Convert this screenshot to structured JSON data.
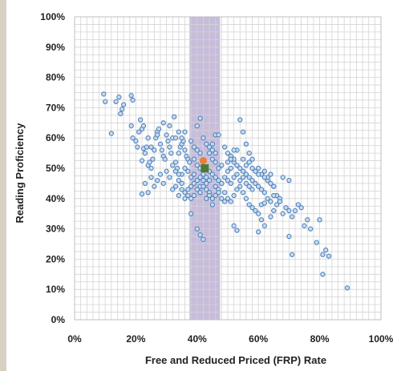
{
  "chart_data": {
    "type": "scatter",
    "title": "",
    "xlabel": "Free and Reduced Priced (FRP) Rate",
    "ylabel": "Reading Proficiency",
    "xlim": [
      0,
      100
    ],
    "ylim": [
      0,
      100
    ],
    "x_ticks": [
      0,
      20,
      40,
      60,
      80,
      100
    ],
    "y_ticks": [
      0,
      10,
      20,
      30,
      40,
      50,
      60,
      70,
      80,
      90,
      100
    ],
    "x_tick_labels": [
      "0%",
      "20%",
      "40%",
      "60%",
      "80%",
      "100%"
    ],
    "y_tick_labels": [
      "0%",
      "10%",
      "20%",
      "30%",
      "40%",
      "50%",
      "60%",
      "70%",
      "80%",
      "90%",
      "100%"
    ],
    "grid": true,
    "legend": "none",
    "colors": {
      "points_fill": "#c9dcef",
      "points_edge": "#4f81bd",
      "band": "#b4a7cf",
      "highlight_orange": "#ed7d31",
      "highlight_green": "#4f7a35",
      "grid": "#d4d4d4"
    },
    "band": {
      "x_start": 37.5,
      "x_end": 47.5
    },
    "highlights": [
      {
        "color": "orange",
        "x": 42,
        "y": 52.5
      },
      {
        "color": "green",
        "x": 42.5,
        "y": 50
      }
    ],
    "series": [
      {
        "points": [
          [
            9.5,
            74.5
          ],
          [
            10,
            72
          ],
          [
            12,
            61.5
          ],
          [
            13.5,
            72
          ],
          [
            14.5,
            73.5
          ],
          [
            15,
            68
          ],
          [
            15.5,
            69.5
          ],
          [
            16,
            71
          ],
          [
            18.5,
            74
          ],
          [
            19,
            72.5
          ],
          [
            18.5,
            64
          ],
          [
            19,
            60
          ],
          [
            20,
            59
          ],
          [
            20.5,
            57
          ],
          [
            21,
            62
          ],
          [
            21.5,
            66
          ],
          [
            22,
            63
          ],
          [
            22.5,
            64
          ],
          [
            22,
            52.5
          ],
          [
            22.5,
            56.5
          ],
          [
            23,
            55
          ],
          [
            23.5,
            57
          ],
          [
            24,
            51
          ],
          [
            24.5,
            52
          ],
          [
            25,
            50
          ],
          [
            25.5,
            53
          ],
          [
            26,
            56
          ],
          [
            26.5,
            60
          ],
          [
            27,
            62
          ],
          [
            27.5,
            63
          ],
          [
            28,
            58
          ],
          [
            28.5,
            56
          ],
          [
            29,
            54
          ],
          [
            29.5,
            53
          ],
          [
            30,
            61
          ],
          [
            30.5,
            59
          ],
          [
            31,
            57
          ],
          [
            31.5,
            55
          ],
          [
            32,
            60
          ],
          [
            32.5,
            67
          ],
          [
            33,
            52
          ],
          [
            33.5,
            50
          ],
          [
            34,
            55
          ],
          [
            34.5,
            57
          ],
          [
            35,
            58
          ],
          [
            35.5,
            59
          ],
          [
            36,
            56
          ],
          [
            36.5,
            54
          ],
          [
            37,
            53
          ],
          [
            37.5,
            52
          ],
          [
            22,
            41.5
          ],
          [
            23,
            45
          ],
          [
            24,
            42
          ],
          [
            25,
            47
          ],
          [
            26,
            44
          ],
          [
            27,
            46
          ],
          [
            28,
            48
          ],
          [
            29,
            45
          ],
          [
            30,
            49
          ],
          [
            31,
            47
          ],
          [
            32,
            43
          ],
          [
            33,
            44
          ],
          [
            34,
            46
          ],
          [
            35,
            48
          ],
          [
            36,
            50
          ],
          [
            37,
            49
          ],
          [
            38,
            47
          ],
          [
            39,
            48
          ],
          [
            40,
            46
          ],
          [
            41,
            44
          ],
          [
            38,
            59
          ],
          [
            39,
            57
          ],
          [
            40,
            56
          ],
          [
            41,
            55
          ],
          [
            39,
            53
          ],
          [
            40,
            51
          ],
          [
            41,
            50
          ],
          [
            42,
            48
          ],
          [
            43,
            47
          ],
          [
            44,
            46
          ],
          [
            40,
            64
          ],
          [
            41,
            66.5
          ],
          [
            44,
            55
          ],
          [
            45,
            58
          ],
          [
            46,
            61
          ],
          [
            47,
            61
          ],
          [
            45,
            53
          ],
          [
            46,
            52
          ],
          [
            47,
            50
          ],
          [
            48,
            51
          ],
          [
            38,
            35
          ],
          [
            40,
            30
          ],
          [
            41,
            28
          ],
          [
            42,
            26.5
          ],
          [
            43,
            40
          ],
          [
            44,
            42
          ],
          [
            45,
            38
          ],
          [
            46,
            44
          ],
          [
            47,
            43
          ],
          [
            48,
            45
          ],
          [
            49,
            47
          ],
          [
            50,
            49
          ],
          [
            51,
            50
          ],
          [
            52,
            52
          ],
          [
            53,
            51
          ],
          [
            54,
            50
          ],
          [
            55,
            49
          ],
          [
            56,
            48
          ],
          [
            57,
            47
          ],
          [
            58,
            46
          ],
          [
            49,
            57
          ],
          [
            50,
            55
          ],
          [
            51,
            54
          ],
          [
            52,
            53
          ],
          [
            53,
            56
          ],
          [
            54,
            66
          ],
          [
            55,
            62
          ],
          [
            56,
            58
          ],
          [
            57,
            55
          ],
          [
            58,
            53
          ],
          [
            49,
            42
          ],
          [
            50,
            40
          ],
          [
            51,
            39
          ],
          [
            52,
            41
          ],
          [
            53,
            43
          ],
          [
            54,
            44
          ],
          [
            55,
            42
          ],
          [
            56,
            40
          ],
          [
            57,
            38
          ],
          [
            58,
            37
          ],
          [
            59,
            45
          ],
          [
            60,
            44
          ],
          [
            61,
            43
          ],
          [
            62,
            42
          ],
          [
            63,
            46
          ],
          [
            64,
            45
          ],
          [
            65,
            44
          ],
          [
            66,
            41
          ],
          [
            67,
            40
          ],
          [
            68,
            47
          ],
          [
            60,
            50
          ],
          [
            61,
            48
          ],
          [
            62,
            49
          ],
          [
            63,
            47
          ],
          [
            64,
            48
          ],
          [
            65,
            44
          ],
          [
            59,
            36
          ],
          [
            60,
            35
          ],
          [
            61,
            33
          ],
          [
            62,
            31
          ],
          [
            52,
            31
          ],
          [
            53,
            29.5
          ],
          [
            60,
            29
          ],
          [
            64,
            34
          ],
          [
            65,
            36
          ],
          [
            66,
            38
          ],
          [
            67,
            39
          ],
          [
            68,
            35
          ],
          [
            69,
            37
          ],
          [
            70,
            36
          ],
          [
            70,
            46
          ],
          [
            72,
            36
          ],
          [
            71,
            34
          ],
          [
            73,
            38
          ],
          [
            75,
            31
          ],
          [
            76,
            33
          ],
          [
            77,
            30
          ],
          [
            74,
            37
          ],
          [
            70,
            27.5
          ],
          [
            71,
            21.5
          ],
          [
            79,
            25.5
          ],
          [
            80,
            33
          ],
          [
            81,
            21.5
          ],
          [
            82,
            23
          ],
          [
            83,
            21
          ],
          [
            81,
            15
          ],
          [
            89,
            10.5
          ],
          [
            33,
            60
          ],
          [
            34,
            62
          ],
          [
            31,
            64
          ],
          [
            29,
            65
          ],
          [
            27,
            61
          ],
          [
            25,
            57
          ],
          [
            24,
            60
          ],
          [
            36,
            62
          ],
          [
            35,
            60
          ],
          [
            42,
            60
          ],
          [
            43,
            58
          ],
          [
            44,
            57
          ],
          [
            45,
            56
          ],
          [
            46,
            55
          ],
          [
            44,
            49
          ],
          [
            45,
            48
          ],
          [
            46,
            47
          ],
          [
            47,
            46
          ],
          [
            48,
            45
          ],
          [
            43,
            45
          ],
          [
            42,
            46
          ],
          [
            41,
            47
          ],
          [
            39,
            45
          ],
          [
            38,
            44
          ],
          [
            37,
            43
          ],
          [
            36,
            42
          ],
          [
            35,
            45
          ],
          [
            34,
            48
          ],
          [
            33,
            49
          ],
          [
            32,
            51
          ],
          [
            50,
            46
          ],
          [
            51,
            45
          ],
          [
            52,
            47
          ],
          [
            53,
            48
          ],
          [
            54,
            46
          ],
          [
            55,
            47
          ],
          [
            56,
            45
          ],
          [
            57,
            44
          ],
          [
            58,
            43
          ],
          [
            50,
            52
          ],
          [
            51,
            53
          ],
          [
            52,
            56
          ],
          [
            55,
            53
          ],
          [
            56,
            51
          ],
          [
            57,
            52
          ],
          [
            58,
            50
          ],
          [
            59,
            49
          ],
          [
            60,
            48
          ],
          [
            62,
            47
          ],
          [
            63,
            40
          ],
          [
            64,
            39
          ],
          [
            65,
            41
          ],
          [
            61,
            38
          ],
          [
            62,
            38.5
          ],
          [
            48,
            40
          ],
          [
            49,
            39
          ],
          [
            47,
            42
          ],
          [
            46,
            41
          ],
          [
            45,
            40
          ],
          [
            44,
            41
          ],
          [
            43,
            43
          ],
          [
            42,
            44
          ],
          [
            41,
            42
          ],
          [
            40,
            43
          ],
          [
            39,
            41
          ],
          [
            38,
            40
          ],
          [
            37,
            41
          ],
          [
            36,
            40
          ],
          [
            35,
            43
          ],
          [
            34,
            41
          ]
        ]
      }
    ]
  }
}
